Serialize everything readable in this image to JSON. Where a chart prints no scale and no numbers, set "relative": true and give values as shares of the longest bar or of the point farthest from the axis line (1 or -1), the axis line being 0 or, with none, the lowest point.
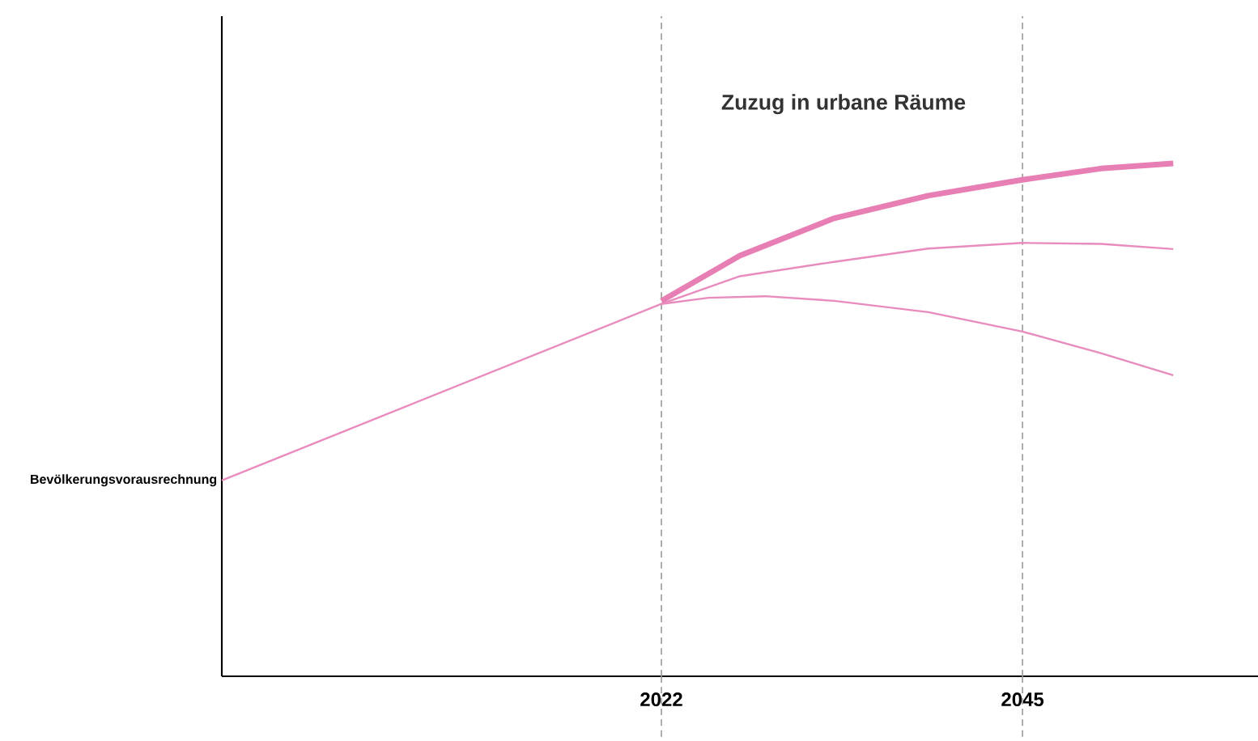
{
  "chart_data": {
    "type": "line",
    "relative": true,
    "title": "Zuzug in urbane Räume",
    "xlim": [
      1994,
      2060
    ],
    "xticks": [
      2022,
      2045
    ],
    "series": [
      {
        "name": "Bevölkerungsvorausrechnung",
        "color": "#e88bbd",
        "x": [
          1994,
          2022,
          2027,
          2033,
          2039,
          2045,
          2050,
          2054.6
        ],
        "values": [
          0.382,
          0.726,
          0.78,
          0.808,
          0.834,
          0.845,
          0.843,
          0.833
        ]
      },
      {
        "color": "#e87fb4",
        "x": [
          2022,
          2027,
          2033,
          2039,
          2045,
          2050,
          2054.6
        ],
        "values": [
          0.732,
          0.82,
          0.893,
          0.937,
          0.968,
          0.99,
          1.0
        ]
      },
      {
        "color": "#e88bbd",
        "x": [
          2022,
          2025,
          2028.6,
          2033,
          2039,
          2045,
          2050,
          2054.6
        ],
        "values": [
          0.726,
          0.738,
          0.741,
          0.732,
          0.71,
          0.672,
          0.63,
          0.587
        ]
      }
    ],
    "ref_lines": [
      {
        "axis": "x",
        "value": 2022,
        "color": "#999999",
        "line_style": "dashed"
      },
      {
        "axis": "x",
        "value": 2045,
        "color": "#999999",
        "line_style": "dashed"
      }
    ]
  }
}
